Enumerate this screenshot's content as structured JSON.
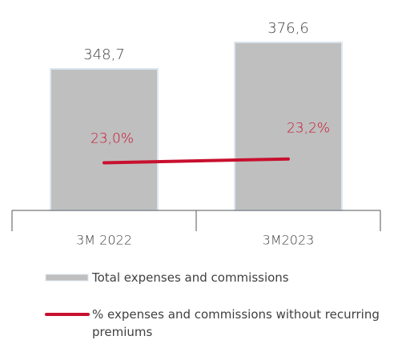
{
  "chart_data": {
    "type": "bar",
    "categories": [
      "3M 2022",
      "3M2023"
    ],
    "series": [
      {
        "name": "Total expenses and commissions",
        "type": "bar",
        "color": "#bfbfbf",
        "values": [
          348.7,
          376.6
        ],
        "value_labels": [
          "348,7",
          "376,6"
        ]
      },
      {
        "name": "% expenses and commissions without recurring premiums",
        "type": "line",
        "axis": "y2",
        "color": "#c8102e",
        "values": [
          23.0,
          23.2
        ],
        "value_labels": [
          "23,0%",
          "23,2%"
        ]
      }
    ],
    "ylim": [
      200,
      400
    ],
    "y2lim": [
      20.5,
      30.5
    ],
    "legend": "bottom"
  }
}
